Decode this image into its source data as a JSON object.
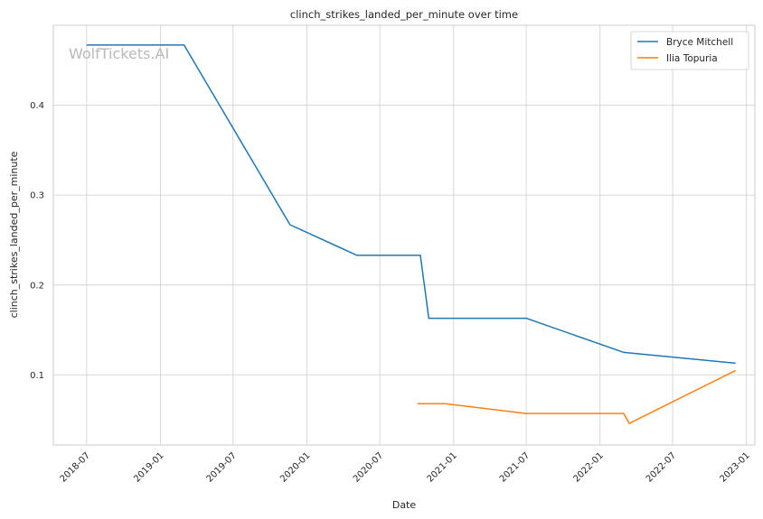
{
  "chart_data": {
    "type": "line",
    "title": "clinch_strikes_landed_per_minute over time",
    "xlabel": "Date",
    "ylabel": "clinch_strikes_landed_per_minute",
    "watermark": "WolfTickets.AI",
    "x_ticks": [
      "2018-07",
      "2019-01",
      "2019-07",
      "2020-01",
      "2020-07",
      "2021-01",
      "2021-07",
      "2022-01",
      "2022-07",
      "2023-01"
    ],
    "y_ticks": [
      0.1,
      0.2,
      0.3,
      0.4
    ],
    "xlim": [
      "2018-04-09",
      "2023-01-22"
    ],
    "ylim": [
      0.022,
      0.489
    ],
    "grid": true,
    "legend_position": "top-right",
    "series": [
      {
        "name": "Bryce Mitchell",
        "color": "#1f77b4",
        "points": [
          {
            "x": "2018-07-01",
            "y": 0.467
          },
          {
            "x": "2019-03-01",
            "y": 0.467
          },
          {
            "x": "2019-11-20",
            "y": 0.267
          },
          {
            "x": "2020-05-05",
            "y": 0.233
          },
          {
            "x": "2020-10-10",
            "y": 0.233
          },
          {
            "x": "2020-10-31",
            "y": 0.163
          },
          {
            "x": "2021-07-01",
            "y": 0.163
          },
          {
            "x": "2022-03-01",
            "y": 0.125
          },
          {
            "x": "2022-12-05",
            "y": 0.113
          }
        ]
      },
      {
        "name": "Ilia Topuria",
        "color": "#ff7f0e",
        "points": [
          {
            "x": "2020-10-03",
            "y": 0.068
          },
          {
            "x": "2020-12-10",
            "y": 0.068
          },
          {
            "x": "2021-07-01",
            "y": 0.057
          },
          {
            "x": "2022-03-01",
            "y": 0.057
          },
          {
            "x": "2022-03-15",
            "y": 0.046
          },
          {
            "x": "2022-12-05",
            "y": 0.105
          }
        ]
      }
    ]
  }
}
